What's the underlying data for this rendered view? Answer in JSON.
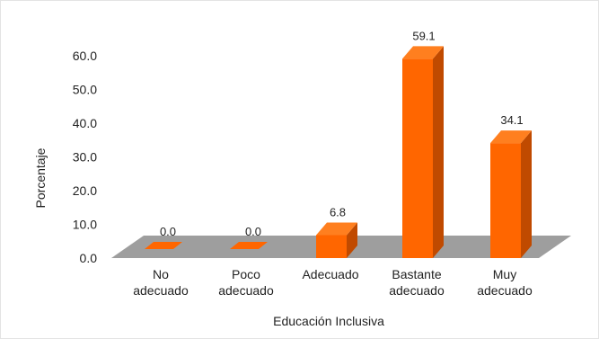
{
  "chart_data": {
    "type": "bar",
    "title": "",
    "xlabel": "Educación Inclusiva",
    "ylabel": "Porcentaje",
    "categories": [
      [
        "No",
        "adecuado"
      ],
      [
        "Poco",
        "adecuado"
      ],
      [
        "Adecuado"
      ],
      [
        "Bastante",
        "adecuado"
      ],
      [
        "Muy",
        "adecuado"
      ]
    ],
    "values": [
      0.0,
      0.0,
      6.8,
      59.1,
      34.1
    ],
    "value_labels": [
      "0.0",
      "0.0",
      "6.8",
      "59.1",
      "34.1"
    ],
    "yticks": [
      "0.0",
      "10.0",
      "20.0",
      "30.0",
      "40.0",
      "50.0",
      "60.0"
    ],
    "ylim": [
      0,
      60
    ],
    "grid": false,
    "legend": "none",
    "style": "3d-column",
    "colors": {
      "bar_front": "#ff6600",
      "bar_side": "#c04a00",
      "bar_top": "#ff7f1f",
      "floor": "#9e9e9e"
    }
  }
}
